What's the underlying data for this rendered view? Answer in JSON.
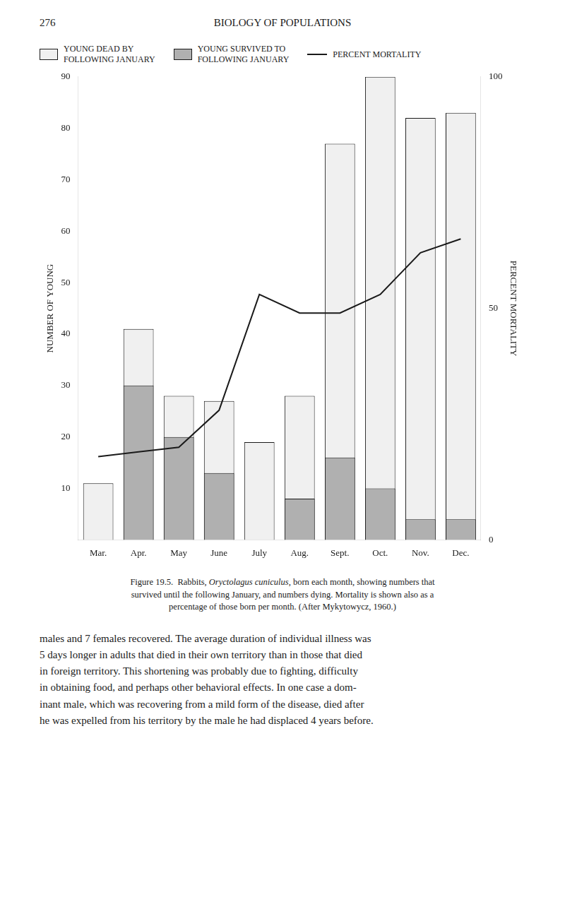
{
  "page_number": "276",
  "header": "BIOLOGY OF POPULATIONS",
  "chart_data": {
    "type": "bar",
    "categories": [
      "Mar.",
      "Apr.",
      "May",
      "June",
      "July",
      "Aug.",
      "Sept.",
      "Oct.",
      "Nov.",
      "Dec."
    ],
    "series": [
      {
        "name": "YOUNG DEAD BY\nFOLLOWING JANUARY",
        "color": "#f0f0f0",
        "values": [
          11,
          41,
          28,
          27,
          19,
          28,
          77,
          90,
          82,
          83
        ]
      },
      {
        "name": "YOUNG SURVIVED TO\nFOLLOWING JANUARY",
        "color": "#b0b0b0",
        "values": [
          0,
          30,
          20,
          13,
          0,
          8,
          16,
          10,
          4,
          4
        ]
      },
      {
        "name": "PERCENT MORTALITY",
        "type": "line",
        "color": "#1a1a1a",
        "axis": "y2",
        "values": [
          18,
          19,
          20,
          28,
          53,
          49,
          49,
          53,
          62,
          65
        ]
      }
    ],
    "ylabel": "NUMBER OF YOUNG",
    "y2label": "PERCENT MORTALITY",
    "ylim": [
      0,
      90
    ],
    "yticks": [
      10,
      20,
      30,
      40,
      50,
      60,
      70,
      80,
      90
    ],
    "y2lim": [
      0,
      100
    ],
    "y2ticks": [
      0,
      50,
      100
    ],
    "grid": false,
    "legend": "upper left"
  },
  "caption": [
    {
      "text": "Figure 19.5.  Rabbits, "
    },
    {
      "text": "Oryctolagus cuniculus",
      "italic": true
    },
    {
      "text": ", born each month, showing numbers that\nsurvived until the following January, and numbers dying. Mortality is shown also as a\npercentage of those born per month. (After Mykytowycz, 1960.)"
    }
  ],
  "body_text": [
    "males and 7 females recovered. The average duration of individual illness was",
    "5 days longer in adults that died in their own territory than in those that died",
    "in foreign territory. This shortening was probably due to fighting, difficulty",
    "in obtaining food, and perhaps other behavioral effects. In one case a dom-",
    "inant male, which was recovering from a mild form of the disease, died after",
    "he was expelled from his territory by the male he had displaced 4 years before."
  ]
}
